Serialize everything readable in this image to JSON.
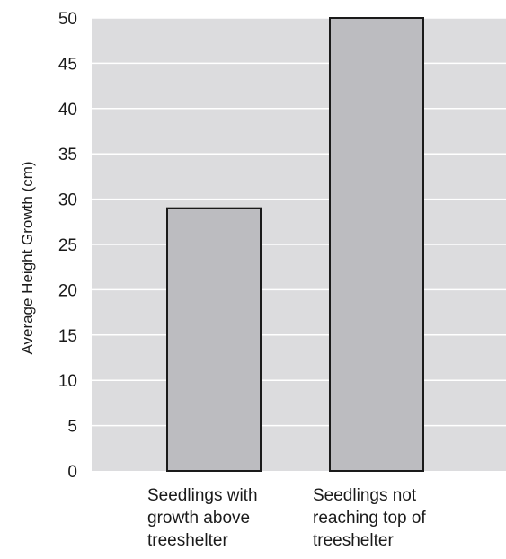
{
  "chart_data": {
    "type": "bar",
    "title": "",
    "xlabel": "",
    "ylabel": "Average Height Growth (cm)",
    "ylim": [
      0,
      50
    ],
    "yticks": [
      0,
      5,
      10,
      15,
      20,
      25,
      30,
      35,
      40,
      45,
      50
    ],
    "grid": true,
    "categories": [
      [
        "Seedlings with",
        "growth above",
        "treeshelter"
      ],
      [
        "Seedlings not",
        "reaching top of",
        "treeshelter"
      ]
    ],
    "values": [
      29,
      50
    ],
    "colors": {
      "plot_background": "#dcdcde",
      "bar_fill": "#bcbcc0",
      "bar_stroke": "#1a1a1a",
      "grid": "#ffffff"
    }
  }
}
